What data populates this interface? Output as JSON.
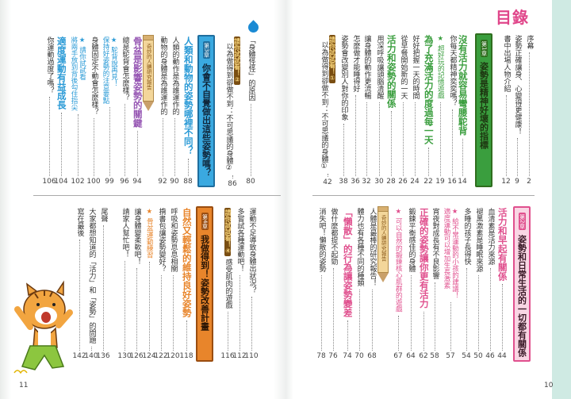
{
  "title": "目錄",
  "folios": {
    "left": "11",
    "right": "10"
  },
  "colors": {
    "green": "#3a9e3e",
    "pink": "#e0508e",
    "blue": "#2a9ad6",
    "orange": "#e8852b",
    "purple": "#9656b3",
    "brown": "#7a4e12"
  },
  "right_top": [
    {
      "kind": "entry",
      "text": "序幕",
      "page": "2"
    },
    {
      "kind": "entry",
      "text": "姿勢正確讓身、心變得更健康！",
      "page": "9"
    },
    {
      "kind": "entry",
      "text": "書中出場人物介紹",
      "page": "12"
    },
    {
      "kind": "chapter",
      "badge": "第1章",
      "text": "姿勢是精神好壞的指標"
    },
    {
      "kind": "heading",
      "text": "沒有活力就容易彎腰駝背",
      "page": "14"
    },
    {
      "kind": "entry",
      "text": "你每天都精神奕奕嗎？",
      "page": "16"
    },
    {
      "kind": "star",
      "text": "★ 超好玩的記憶遊戲",
      "page": "19"
    },
    {
      "kind": "heading",
      "text": "為了充滿活力的度過每一天",
      "page": "22"
    },
    {
      "kind": "entry",
      "text": "好好把握一天的時間",
      "page": "24"
    },
    {
      "kind": "entry",
      "text": "從早餐開始新的一天",
      "page": "26"
    },
    {
      "kind": "heading",
      "text": "活力和姿勢的關係",
      "page": "28"
    },
    {
      "kind": "entry",
      "text": "用深呼吸讓頭腦清醒",
      "page": "30"
    },
    {
      "kind": "entry",
      "text": "讓身體的動作更流暢",
      "page": "32"
    },
    {
      "kind": "entry",
      "text": "怎麼做才能睡得好",
      "page": "36"
    },
    {
      "kind": "entry",
      "text": "姿勢會改變別人對你的印象",
      "page": "38"
    },
    {
      "kind": "try",
      "label": "請你試試看！①",
      "text": "以為做得到卻做不到：不可思議的身體①",
      "page": "42"
    }
  ],
  "right_bottom": [
    {
      "kind": "chapter",
      "badge": "第2章",
      "text": "姿勢和日常生活的一切都有關係"
    },
    {
      "kind": "heading",
      "text": "活力和早起有關係",
      "page": "44"
    },
    {
      "kind": "entry",
      "text": "血清素是活力來源",
      "page": "46"
    },
    {
      "kind": "entry",
      "text": "褪黑激素是睡眠來源",
      "page": "50"
    },
    {
      "kind": "entry",
      "text": "多睡的孩子長得快",
      "page": "54"
    },
    {
      "kind": "star2",
      "text": "★ 給不常運動的小孩的建議！",
      "line2": "適度運動可以增加生長激素",
      "page": "57"
    },
    {
      "kind": "entry",
      "text": "宵夜對成長有不良影響",
      "page": "58"
    },
    {
      "kind": "heading",
      "text": "正確的姿勢讓你更有活力",
      "page": "62"
    },
    {
      "kind": "entry",
      "text": "鍛鍊平衡感佳的身體",
      "page": "64"
    },
    {
      "kind": "star",
      "text": "★ 可以自然的鍛鍊核心肌群的遊戲",
      "page": "67"
    },
    {
      "kind": "pencil",
      "text": "奇妙的人體研究報告"
    },
    {
      "kind": "entry",
      "text": "人體是最棒的研究報告！",
      "page": "68"
    },
    {
      "kind": "entry",
      "text": "體力也有各種不同的種類",
      "page": "70"
    },
    {
      "kind": "heading",
      "text": "「懶散」的行為讓姿勢變差",
      "page": "74"
    },
    {
      "kind": "entry",
      "text": "做什麼都提不起勁",
      "page": "76"
    },
    {
      "kind": "entry",
      "text": "消失吧！懶散的姿勢",
      "page": "78"
    }
  ],
  "left_top": [
    {
      "kind": "entry",
      "text": "「身體怪怪」的原因",
      "page": "80"
    },
    {
      "kind": "try",
      "label": "請你試試看！②",
      "text": "以為做得到卻做不到：不可思議的身體②",
      "page": "86"
    },
    {
      "kind": "chapter",
      "badge": "第3章",
      "text": "你會不自覺做出這些姿勢嗎？"
    },
    {
      "kind": "heading",
      "text": "人類和動物的姿勢哪裡不同？",
      "page": "88"
    },
    {
      "kind": "entry",
      "text": "人類的動作是為誰運作的",
      "page": "90"
    },
    {
      "kind": "entry",
      "text": "動物的身體是為誰運作的",
      "page": "92"
    },
    {
      "kind": "pencil",
      "text": "奇妙的人體研究報告"
    },
    {
      "kind": "heading",
      "text": "骨盆是影響姿勢的關鍵",
      "page": "94"
    },
    {
      "kind": "entry",
      "text": "總是駝背會怎麼樣？",
      "page": "96"
    },
    {
      "kind": "star2",
      "text": "★ 駝背說再見！",
      "line2": "保持好姿勢的注意要點",
      "page": "99"
    },
    {
      "kind": "entry",
      "text": "身體固定不動會怎麼樣？",
      "page": "100"
    },
    {
      "kind": "star2",
      "text": "★ 請你試試看",
      "line2": "將兩手放到背後勾住指尖",
      "page": "102"
    },
    {
      "kind": "heading",
      "text": "適度運動有益成長",
      "page": "104"
    },
    {
      "kind": "entry",
      "text": "你運動過度了嗎？",
      "page": "106"
    }
  ],
  "left_bottom": [
    {
      "kind": "entry",
      "text": "運動不足導致身體出狀況？",
      "page": "110"
    },
    {
      "kind": "entry",
      "text": "多嘗試各種運動吧！",
      "page": "112"
    },
    {
      "kind": "tryinline",
      "label": "請你試試看！④",
      "text": "感受肌肉的遊戲",
      "page": "116"
    },
    {
      "kind": "chapter",
      "badge": "第4章",
      "text": "我做得到！姿勢改善計畫"
    },
    {
      "kind": "heading",
      "text": "自然又輕鬆的維持良好姿勢",
      "page": "118"
    },
    {
      "kind": "entry",
      "text": "呼吸和姿勢息息相關",
      "page": "120"
    },
    {
      "kind": "entry",
      "text": "揹書包讓姿勢變好？",
      "page": "122"
    },
    {
      "kind": "star",
      "text": "★ 骨盆運動練習",
      "page": "124"
    },
    {
      "kind": "entry",
      "text": "讓身體變柔軟吧！",
      "page": "126"
    },
    {
      "kind": "entry",
      "text": "請家人幫忙吧！",
      "page": "130"
    },
    {
      "kind": "entry",
      "text": "尾聲",
      "page": "136"
    },
    {
      "kind": "entry",
      "text": "大家都想知道的「活力」和「姿勢」的問題",
      "page": "140"
    },
    {
      "kind": "entry",
      "text": "寫在最後",
      "page": "142"
    }
  ]
}
